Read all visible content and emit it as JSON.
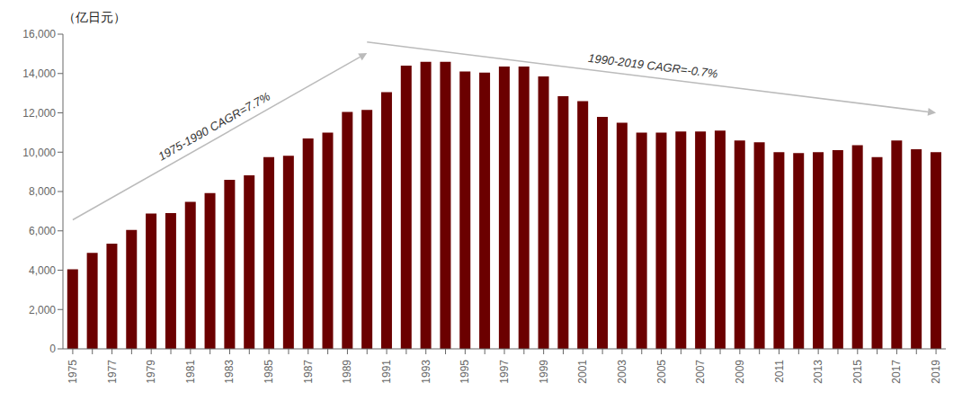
{
  "chart_data": {
    "type": "bar",
    "ylabel": "（亿日元）",
    "categories": [
      "1975",
      null,
      "1977",
      null,
      "1979",
      null,
      "1981",
      null,
      "1983",
      null,
      "1985",
      null,
      "1987",
      null,
      "1989",
      null,
      "1991",
      null,
      "1993",
      null,
      "1995",
      null,
      "1997",
      null,
      "1999",
      null,
      "2001",
      null,
      "2003",
      null,
      "2005",
      null,
      "2007",
      null,
      "2009",
      null,
      "2011",
      null,
      "2013",
      null,
      "2015",
      null,
      "2017",
      null,
      "2019"
    ],
    "values": [
      4050,
      4880,
      5350,
      6050,
      6880,
      6900,
      7480,
      7920,
      8600,
      8820,
      9750,
      9820,
      10700,
      11000,
      12050,
      12150,
      13050,
      14400,
      14600,
      14600,
      14100,
      14050,
      14350,
      14350,
      13850,
      12850,
      12600,
      11800,
      11500,
      11000,
      11000,
      11050,
      11050,
      11100,
      10600,
      10500,
      10000,
      9950,
      10000,
      10100,
      10350,
      9750,
      10600,
      10150,
      10000
    ],
    "color": "#6B0000",
    "ylim": [
      0,
      16000
    ],
    "yticks": [
      0,
      {
        "value": 2000,
        "label": "2,000"
      },
      {
        "value": 4000,
        "label": "4,000"
      },
      {
        "value": 6000,
        "label": "6,000"
      },
      {
        "value": 8000,
        "label": "8,000"
      },
      {
        "value": 10000,
        "label": "10,000"
      },
      {
        "value": 12000,
        "label": "12,000"
      },
      {
        "value": 14000,
        "label": "14,000"
      },
      {
        "value": 16000,
        "label": "16,000"
      }
    ],
    "annotations": [
      "1975-1990  CAGR=7.7%",
      "1990-2019  CAGR=-0.7%"
    ],
    "grid": false
  }
}
